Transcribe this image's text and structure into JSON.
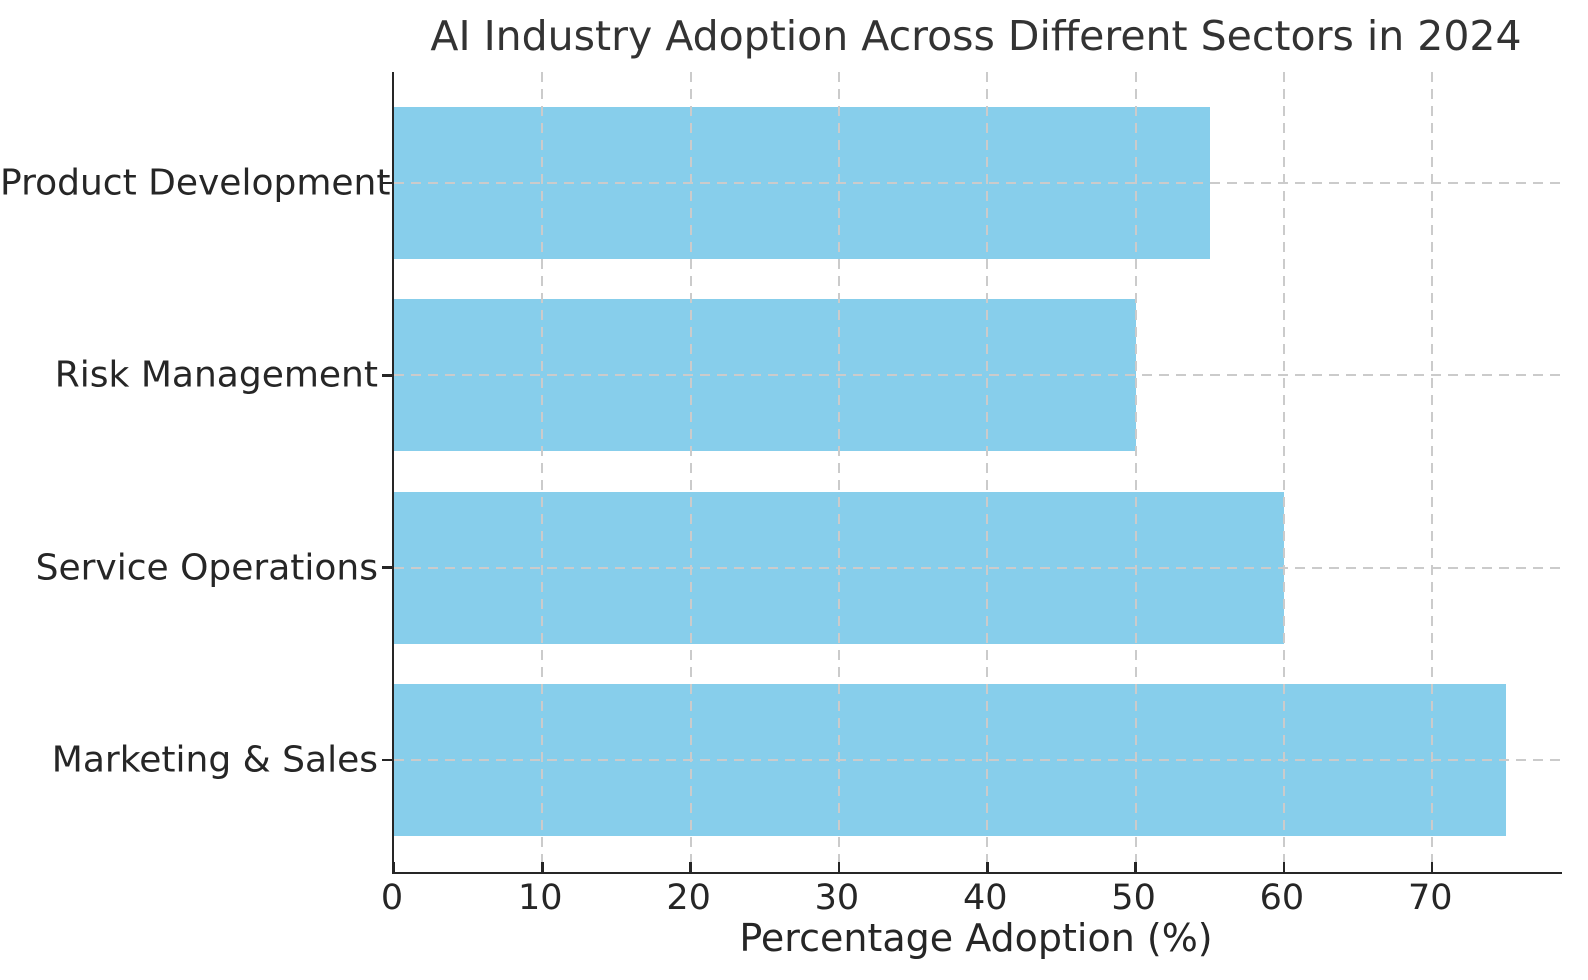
{
  "figure": {
    "background": "#ffffff"
  },
  "chart_data": {
    "type": "bar",
    "orientation": "horizontal",
    "title": "AI Industry Adoption Across Different Sectors in 2024",
    "xlabel": "Percentage Adoption (%)",
    "ylabel": "",
    "categories": [
      "Product Development",
      "Risk Management",
      "Service Operations",
      "Marketing & Sales"
    ],
    "values": [
      55,
      50,
      60,
      75
    ],
    "xlim": [
      0,
      78.75
    ],
    "xticks": [
      0,
      10,
      20,
      30,
      40,
      50,
      60,
      70
    ],
    "bar_color": "#87CEEB",
    "grid": true,
    "grid_line_style": "dashed",
    "grid_color": "#cbcbcb",
    "axis_color": "#262626",
    "text_color": "#262626",
    "legend_position": "none",
    "spines": [
      "left",
      "bottom"
    ]
  }
}
